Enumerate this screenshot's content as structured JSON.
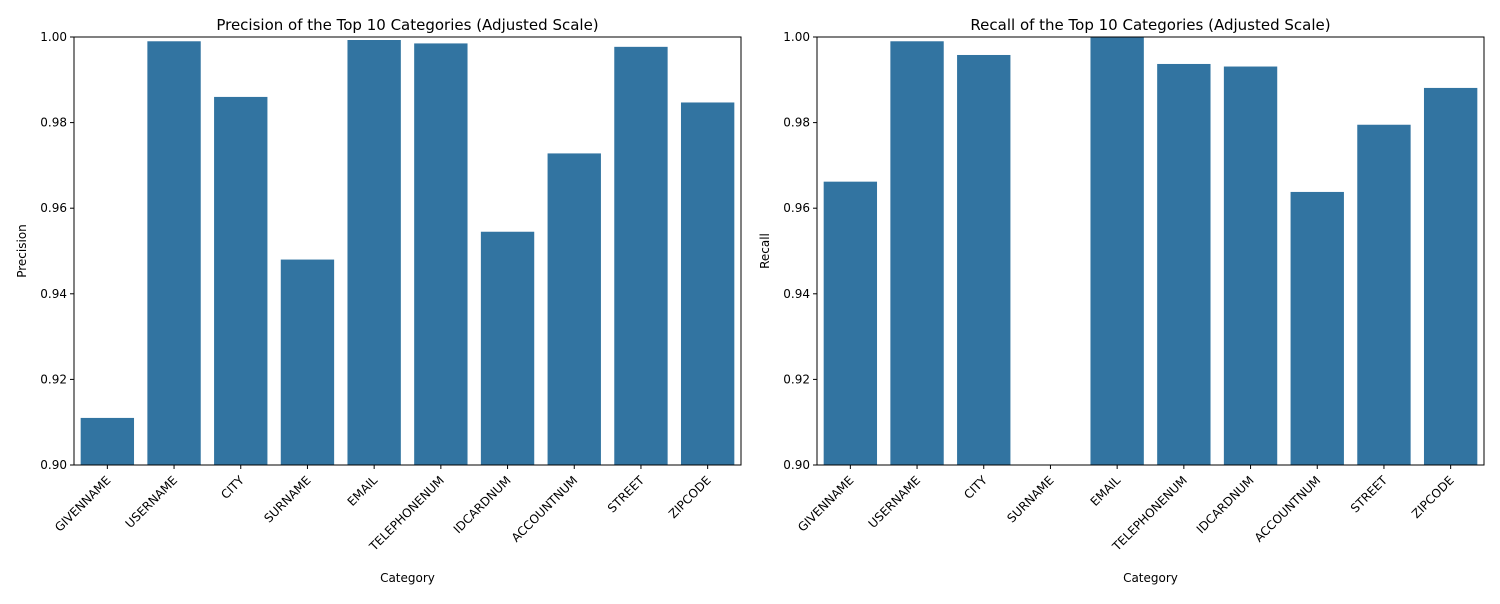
{
  "chart_data": [
    {
      "type": "bar",
      "title": "Precision of the Top 10 Categories (Adjusted Scale)",
      "xlabel": "Category",
      "ylabel": "Precision",
      "ylim": [
        0.9,
        1.0
      ],
      "yticks": [
        "0.90",
        "0.92",
        "0.94",
        "0.96",
        "0.98",
        "1.00"
      ],
      "categories": [
        "GIVENNAME",
        "USERNAME",
        "CITY",
        "SURNAME",
        "EMAIL",
        "TELEPHONENUM",
        "IDCARDNUM",
        "ACCOUNTNUM",
        "STREET",
        "ZIPCODE"
      ],
      "values": [
        0.911,
        0.999,
        0.986,
        0.948,
        0.9993,
        0.9985,
        0.9545,
        0.9728,
        0.9977,
        0.9847
      ],
      "color": "#3274a1",
      "grid": false
    },
    {
      "type": "bar",
      "title": "Recall of the Top 10 Categories (Adjusted Scale)",
      "xlabel": "Category",
      "ylabel": "Recall",
      "ylim": [
        0.9,
        1.0
      ],
      "yticks": [
        "0.90",
        "0.92",
        "0.94",
        "0.96",
        "0.98",
        "1.00"
      ],
      "categories": [
        "GIVENNAME",
        "USERNAME",
        "CITY",
        "SURNAME",
        "EMAIL",
        "TELEPHONENUM",
        "IDCARDNUM",
        "ACCOUNTNUM",
        "STREET",
        "ZIPCODE"
      ],
      "values": [
        0.9662,
        0.999,
        0.9958,
        0.9,
        1.0,
        0.9937,
        0.9931,
        0.9638,
        0.9795,
        0.9881
      ],
      "color": "#3274a1",
      "grid": false
    }
  ]
}
